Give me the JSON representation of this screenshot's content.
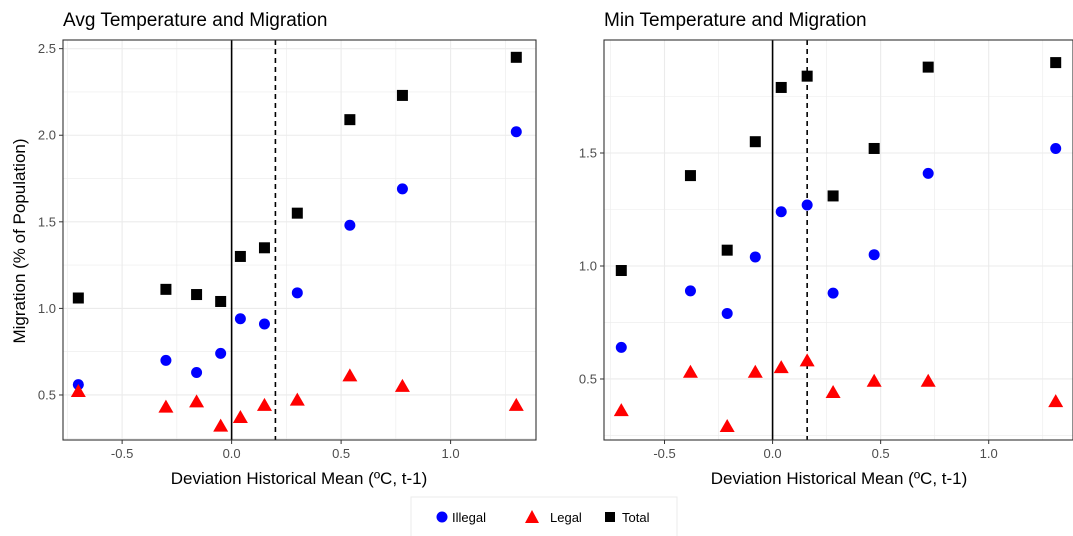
{
  "colors": {
    "Illegal": "#0000ff",
    "Legal": "#ff0000",
    "Total": "#000000",
    "grid": "#ebebeb",
    "panel_border": "#333333"
  },
  "legend": {
    "placement": "bottom",
    "items": [
      {
        "label": "Illegal",
        "shape": "circle",
        "color": "#0000ff"
      },
      {
        "label": "Legal",
        "shape": "triangle",
        "color": "#ff0000"
      },
      {
        "label": "Total",
        "shape": "square",
        "color": "#000000"
      }
    ]
  },
  "chart_data": [
    {
      "type": "scatter",
      "title": "Avg Temperature and Migration",
      "xlabel": "Deviation Historical Mean (ºC, t-1)",
      "ylabel": "Migration (% of Population)",
      "xlim": [
        -0.77,
        1.39
      ],
      "ylim": [
        0.24,
        2.55
      ],
      "xticks": [
        -0.5,
        0.0,
        0.5,
        1.0
      ],
      "xtick_labels": [
        "-0.5",
        "0.0",
        "0.5",
        "1.0"
      ],
      "yticks": [
        0.5,
        1.0,
        1.5,
        2.0,
        2.5
      ],
      "ytick_labels": [
        "0.5",
        "1.0",
        "1.5",
        "2.0",
        "2.5"
      ],
      "grid": true,
      "vlines": [
        {
          "x": 0.0,
          "style": "solid"
        },
        {
          "x": 0.2,
          "style": "dashed"
        }
      ],
      "series": [
        {
          "name": "Illegal",
          "marker": "circle",
          "x": [
            -0.7,
            -0.3,
            -0.16,
            -0.05,
            0.04,
            0.15,
            0.3,
            0.54,
            0.78,
            1.3
          ],
          "y": [
            0.56,
            0.7,
            0.63,
            0.74,
            0.94,
            0.91,
            1.09,
            1.48,
            1.69,
            2.02
          ]
        },
        {
          "name": "Legal",
          "marker": "triangle",
          "x": [
            -0.7,
            -0.3,
            -0.16,
            -0.05,
            0.04,
            0.15,
            0.3,
            0.54,
            0.78,
            1.3
          ],
          "y": [
            0.52,
            0.43,
            0.46,
            0.32,
            0.37,
            0.44,
            0.47,
            0.61,
            0.55,
            0.44
          ]
        },
        {
          "name": "Total",
          "marker": "square",
          "x": [
            -0.7,
            -0.3,
            -0.16,
            -0.05,
            0.04,
            0.15,
            0.3,
            0.54,
            0.78,
            1.3
          ],
          "y": [
            1.06,
            1.11,
            1.08,
            1.04,
            1.3,
            1.35,
            1.55,
            2.09,
            2.23,
            2.45
          ]
        }
      ]
    },
    {
      "type": "scatter",
      "title": "Min Temperature and Migration",
      "xlabel": "Deviation Historical Mean (ºC, t-1)",
      "ylabel": "",
      "xlim": [
        -0.78,
        1.39
      ],
      "ylim": [
        0.23,
        2.0
      ],
      "xticks": [
        -0.5,
        0.0,
        0.5,
        1.0
      ],
      "xtick_labels": [
        "-0.5",
        "0.0",
        "0.5",
        "1.0"
      ],
      "yticks": [
        0.5,
        1.0,
        1.5
      ],
      "ytick_labels": [
        "0.5",
        "1.0",
        "1.5"
      ],
      "grid": true,
      "vlines": [
        {
          "x": 0.0,
          "style": "solid"
        },
        {
          "x": 0.16,
          "style": "dashed"
        }
      ],
      "series": [
        {
          "name": "Illegal",
          "marker": "circle",
          "x": [
            -0.7,
            -0.38,
            -0.21,
            -0.08,
            0.04,
            0.16,
            0.28,
            0.47,
            0.72,
            1.31
          ],
          "y": [
            0.64,
            0.89,
            0.79,
            1.04,
            1.24,
            1.27,
            0.88,
            1.05,
            1.41,
            1.52
          ]
        },
        {
          "name": "Legal",
          "marker": "triangle",
          "x": [
            -0.7,
            -0.38,
            -0.21,
            -0.08,
            0.04,
            0.16,
            0.28,
            0.47,
            0.72,
            1.31
          ],
          "y": [
            0.36,
            0.53,
            0.29,
            0.53,
            0.55,
            0.58,
            0.44,
            0.49,
            0.49,
            0.4
          ]
        },
        {
          "name": "Total",
          "marker": "square",
          "x": [
            -0.7,
            -0.38,
            -0.21,
            -0.08,
            0.04,
            0.16,
            0.28,
            0.47,
            0.72,
            1.31
          ],
          "y": [
            0.98,
            1.4,
            1.07,
            1.55,
            1.79,
            1.84,
            1.31,
            1.52,
            1.88,
            1.9
          ]
        }
      ]
    }
  ]
}
